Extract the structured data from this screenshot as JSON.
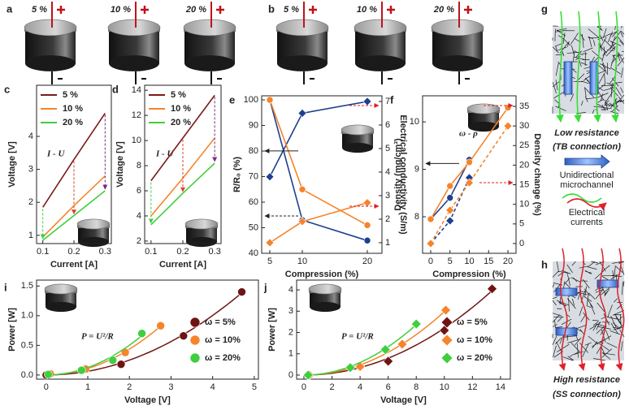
{
  "top_panels": [
    {
      "panel": "a",
      "labels": [
        "5 %",
        "10 %",
        "20 %"
      ]
    },
    {
      "panel": "b",
      "labels": [
        "5 %",
        "10 %",
        "20 %"
      ]
    }
  ],
  "diagrams": [
    {
      "panel": "g",
      "caption": [
        "Low resistance",
        "(TB connection)"
      ],
      "legend": [
        "Unidirectional",
        "microchannel",
        "Electrical",
        "currents"
      ]
    },
    {
      "panel": "h",
      "caption": [
        "High resistance",
        "(SS connection)"
      ]
    }
  ],
  "chart_data": [
    {
      "type": "line",
      "panel": "c",
      "annotation": "I - U",
      "xlabel": "Current [A]",
      "ylabel": "Voltage [V]",
      "x": [
        0.1,
        0.2,
        0.3
      ],
      "xlim": [
        0.08,
        0.32
      ],
      "xticks": [
        0.1,
        0.2,
        0.3
      ],
      "ylim": [
        0.75,
        5.55
      ],
      "yticks": [
        1,
        2,
        3,
        4
      ],
      "legend": "upper left",
      "series": [
        {
          "name": "5 %",
          "color": "#7b1a1a",
          "values": [
            1.85,
            3.3,
            4.7
          ]
        },
        {
          "name": "10 %",
          "color": "#f5842b",
          "values": [
            0.95,
            1.9,
            2.8
          ]
        },
        {
          "name": "20 %",
          "color": "#3ecf3e",
          "values": [
            0.85,
            1.6,
            2.35
          ]
        }
      ]
    },
    {
      "type": "line",
      "panel": "d",
      "annotation": "I - U",
      "xlabel": "Current [A]",
      "ylabel": "Voltage [V]",
      "x": [
        0.1,
        0.2,
        0.3
      ],
      "xlim": [
        0.08,
        0.32
      ],
      "xticks": [
        0.1,
        0.2,
        0.3
      ],
      "ylim": [
        1.8,
        14.4
      ],
      "yticks": [
        2,
        4,
        6,
        8,
        10,
        12,
        14
      ],
      "legend": "upper left",
      "series": [
        {
          "name": "5 %",
          "color": "#7b1a1a",
          "values": [
            6.8,
            10.2,
            13.6
          ]
        },
        {
          "name": "10 %",
          "color": "#f5842b",
          "values": [
            4.0,
            7.0,
            10.2
          ]
        },
        {
          "name": "20 %",
          "color": "#3ecf3e",
          "values": [
            3.3,
            5.8,
            8.2
          ]
        }
      ]
    },
    {
      "type": "line",
      "panel": "e",
      "xlabel": "Compression (%)",
      "ylabel": "R/R₀ (%)",
      "y2label": "Electrical conductivity (S/m)",
      "x": [
        5,
        10,
        20
      ],
      "xlim": [
        3.75,
        22.25
      ],
      "xticks": [
        5,
        10,
        20
      ],
      "ylim": [
        40,
        101.6
      ],
      "yticks": [
        40,
        50,
        60,
        70,
        80,
        90,
        100
      ],
      "y2lim": [
        0.55,
        7.24
      ],
      "y2ticks": [
        1,
        2,
        3,
        4,
        5,
        6,
        7
      ],
      "series": [
        {
          "color": "#1f3f8f",
          "marker": "circle",
          "values": [
            100,
            53,
            45
          ]
        },
        {
          "color": "#1f3f8f",
          "marker": "diamond",
          "axis": "y2",
          "values": [
            3.8,
            6.5,
            7.0
          ]
        },
        {
          "color": "#f5842b",
          "marker": "circle",
          "values": [
            100,
            65,
            51
          ]
        },
        {
          "color": "#f5842b",
          "marker": "diamond",
          "axis": "y2",
          "values": [
            1.0,
            1.9,
            2.7
          ]
        }
      ]
    },
    {
      "type": "line",
      "panel": "f",
      "annotation": "ω - ρ",
      "xlabel": "Compression (%)",
      "ylabel": "Density (mg/cm³)",
      "y2label": "Density change (%)",
      "x": [
        0,
        5,
        10,
        20
      ],
      "xlim": [
        -2.1,
        22.1
      ],
      "xticks": [
        0,
        5,
        10,
        15,
        20
      ],
      "ylim": [
        7.23,
        10.55
      ],
      "yticks": [
        8,
        9,
        10
      ],
      "y2lim": [
        -2.5,
        37.7
      ],
      "y2ticks": [
        0,
        5,
        10,
        15,
        20,
        25,
        30,
        35
      ],
      "series": [
        {
          "color": "#1f3f8f",
          "marker": "circle",
          "values": [
            7.95,
            8.4,
            9.2,
            null
          ]
        },
        {
          "color": "#1f3f8f",
          "marker": "diamond",
          "axis": "y2",
          "dash": true,
          "values": [
            0,
            5.8,
            16.8,
            null
          ]
        },
        {
          "color": "#f5842b",
          "marker": "circle",
          "values": [
            7.95,
            8.65,
            9.15,
            10.3
          ]
        },
        {
          "color": "#f5842b",
          "marker": "diamond",
          "axis": "y2",
          "dash": true,
          "values": [
            0,
            8.5,
            15.5,
            30
          ]
        }
      ]
    },
    {
      "type": "scatter",
      "panel": "i",
      "annotation": "P = U²/R",
      "xlabel": "Voltage [V]",
      "ylabel": "Power [W]",
      "xlim": [
        -0.23,
        5.1
      ],
      "xticks": [
        0,
        1,
        2,
        3,
        4,
        5
      ],
      "ylim": [
        -0.07,
        1.6
      ],
      "yticks": [
        {
          "value": 0,
          "label": "0.0"
        },
        0.5,
        {
          "value": 1,
          "label": "1.0"
        },
        1.5
      ],
      "legend": "lower right",
      "series": [
        {
          "name": "ω = 5%",
          "color": "#6e1414",
          "marker": "circle",
          "x": [
            0,
            1.8,
            3.3,
            4.7
          ],
          "values": [
            0,
            0.18,
            0.66,
            1.4
          ]
        },
        {
          "name": "ω = 10%",
          "color": "#f5842b",
          "marker": "circle",
          "x": [
            0.1,
            0.95,
            1.9,
            2.75
          ],
          "values": [
            0.02,
            0.1,
            0.38,
            0.83
          ]
        },
        {
          "name": "ω = 20%",
          "color": "#3ecf3e",
          "marker": "circle",
          "x": [
            0.05,
            0.85,
            1.6,
            2.3
          ],
          "values": [
            0.01,
            0.08,
            0.25,
            0.7
          ]
        }
      ]
    },
    {
      "type": "scatter",
      "panel": "j",
      "annotation": "P = U²/R",
      "xlabel": "Voltage [V]",
      "ylabel": "Power [W]",
      "xlim": [
        -0.52,
        14.7
      ],
      "xticks": [
        0,
        2,
        4,
        6,
        8,
        10,
        12,
        14
      ],
      "ylim": [
        -0.19,
        4.46
      ],
      "yticks": [
        0,
        1,
        2,
        3,
        4
      ],
      "legend": "lower right",
      "series": [
        {
          "name": "ω = 5%",
          "color": "#6e1414",
          "marker": "diamond",
          "x": [
            0.3,
            6,
            10,
            13.4
          ],
          "values": [
            0,
            0.65,
            2.1,
            4.05
          ]
        },
        {
          "name": "ω = 10%",
          "color": "#f5842b",
          "marker": "diamond",
          "x": [
            0.4,
            4,
            7,
            10.1
          ],
          "values": [
            0,
            0.4,
            1.45,
            3.05
          ]
        },
        {
          "name": "ω = 20%",
          "color": "#3ecf3e",
          "marker": "diamond",
          "x": [
            0.3,
            3.3,
            5.8,
            8
          ],
          "values": [
            0,
            0.35,
            1.2,
            2.4
          ]
        }
      ]
    }
  ]
}
